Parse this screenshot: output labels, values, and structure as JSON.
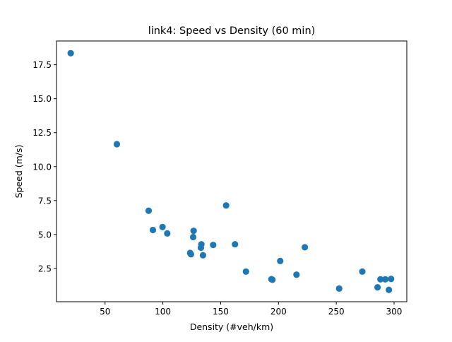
{
  "chart_data": {
    "type": "scatter",
    "title": "link4: Speed vs Density (60 min)",
    "xlabel": "Density (#veh/km)",
    "ylabel": "Speed (m/s)",
    "xlim": [
      8.0,
      311.0
    ],
    "ylim": [
      0.05,
      19.25
    ],
    "xticks": [
      50,
      100,
      150,
      200,
      250,
      300
    ],
    "yticks": [
      2.5,
      5.0,
      7.5,
      10.0,
      12.5,
      15.0,
      17.5
    ],
    "xtick_labels": [
      "50",
      "100",
      "150",
      "200",
      "250",
      "300"
    ],
    "ytick_labels": [
      "2.5",
      "5.0",
      "7.5",
      "10.0",
      "12.5",
      "15.0",
      "17.5"
    ],
    "grid": false,
    "legend": "none",
    "marker_color": "#1f77b4",
    "series": [
      {
        "x": [
          20.3,
          60.2,
          87.7,
          91.4,
          99.7,
          103.8,
          123.6,
          124.3,
          126.2,
          126.6,
          132.9,
          133.3,
          134.7,
          143.5,
          154.7,
          162.4,
          171.9,
          193.9,
          194.8,
          201.5,
          215.6,
          222.8,
          252.5,
          272.5,
          285.7,
          288.2,
          292.4,
          295.5,
          297.4
        ],
        "y": [
          18.35,
          11.65,
          6.75,
          5.33,
          5.55,
          5.08,
          3.64,
          3.54,
          4.81,
          5.27,
          4.03,
          4.28,
          3.47,
          4.23,
          7.14,
          4.28,
          2.27,
          1.71,
          1.67,
          3.05,
          2.04,
          4.06,
          1.02,
          2.27,
          1.11,
          1.7,
          1.7,
          0.92,
          1.73
        ]
      }
    ]
  }
}
